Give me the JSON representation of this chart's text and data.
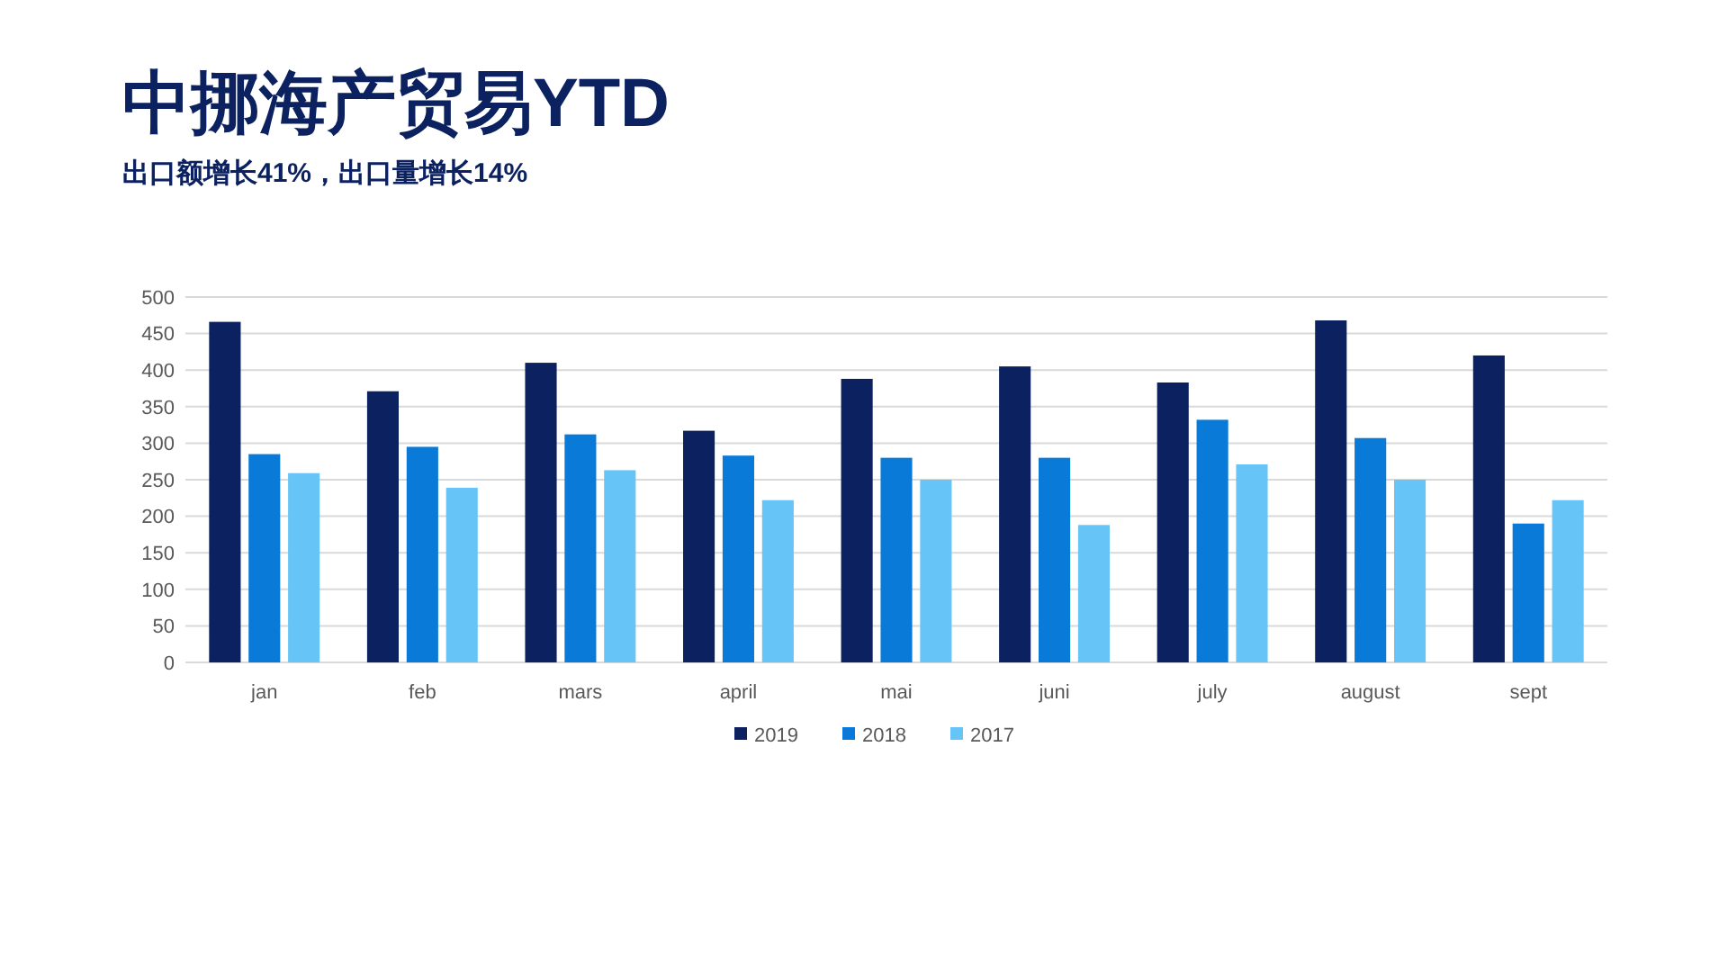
{
  "chart_data": {
    "type": "bar",
    "title": "中挪海产贸易YTD",
    "subtitle": "出口额增长41%，出口量增长14%",
    "categories": [
      "jan",
      "feb",
      "mars",
      "april",
      "mai",
      "juni",
      "july",
      "august",
      "sept"
    ],
    "series": [
      {
        "name": "2019",
        "color": "#0b2160",
        "values": [
          466,
          371,
          410,
          317,
          388,
          405,
          383,
          468,
          420
        ]
      },
      {
        "name": "2018",
        "color": "#0a7ad8",
        "values": [
          285,
          295,
          312,
          283,
          280,
          280,
          332,
          307,
          190
        ]
      },
      {
        "name": "2017",
        "color": "#66c4f7",
        "values": [
          259,
          239,
          263,
          222,
          250,
          188,
          271,
          250,
          222
        ]
      }
    ],
    "ylim": [
      0,
      500
    ],
    "yticks": [
      0,
      50,
      100,
      150,
      200,
      250,
      300,
      350,
      400,
      450,
      500
    ],
    "grid": "y",
    "legend": "bottom"
  }
}
